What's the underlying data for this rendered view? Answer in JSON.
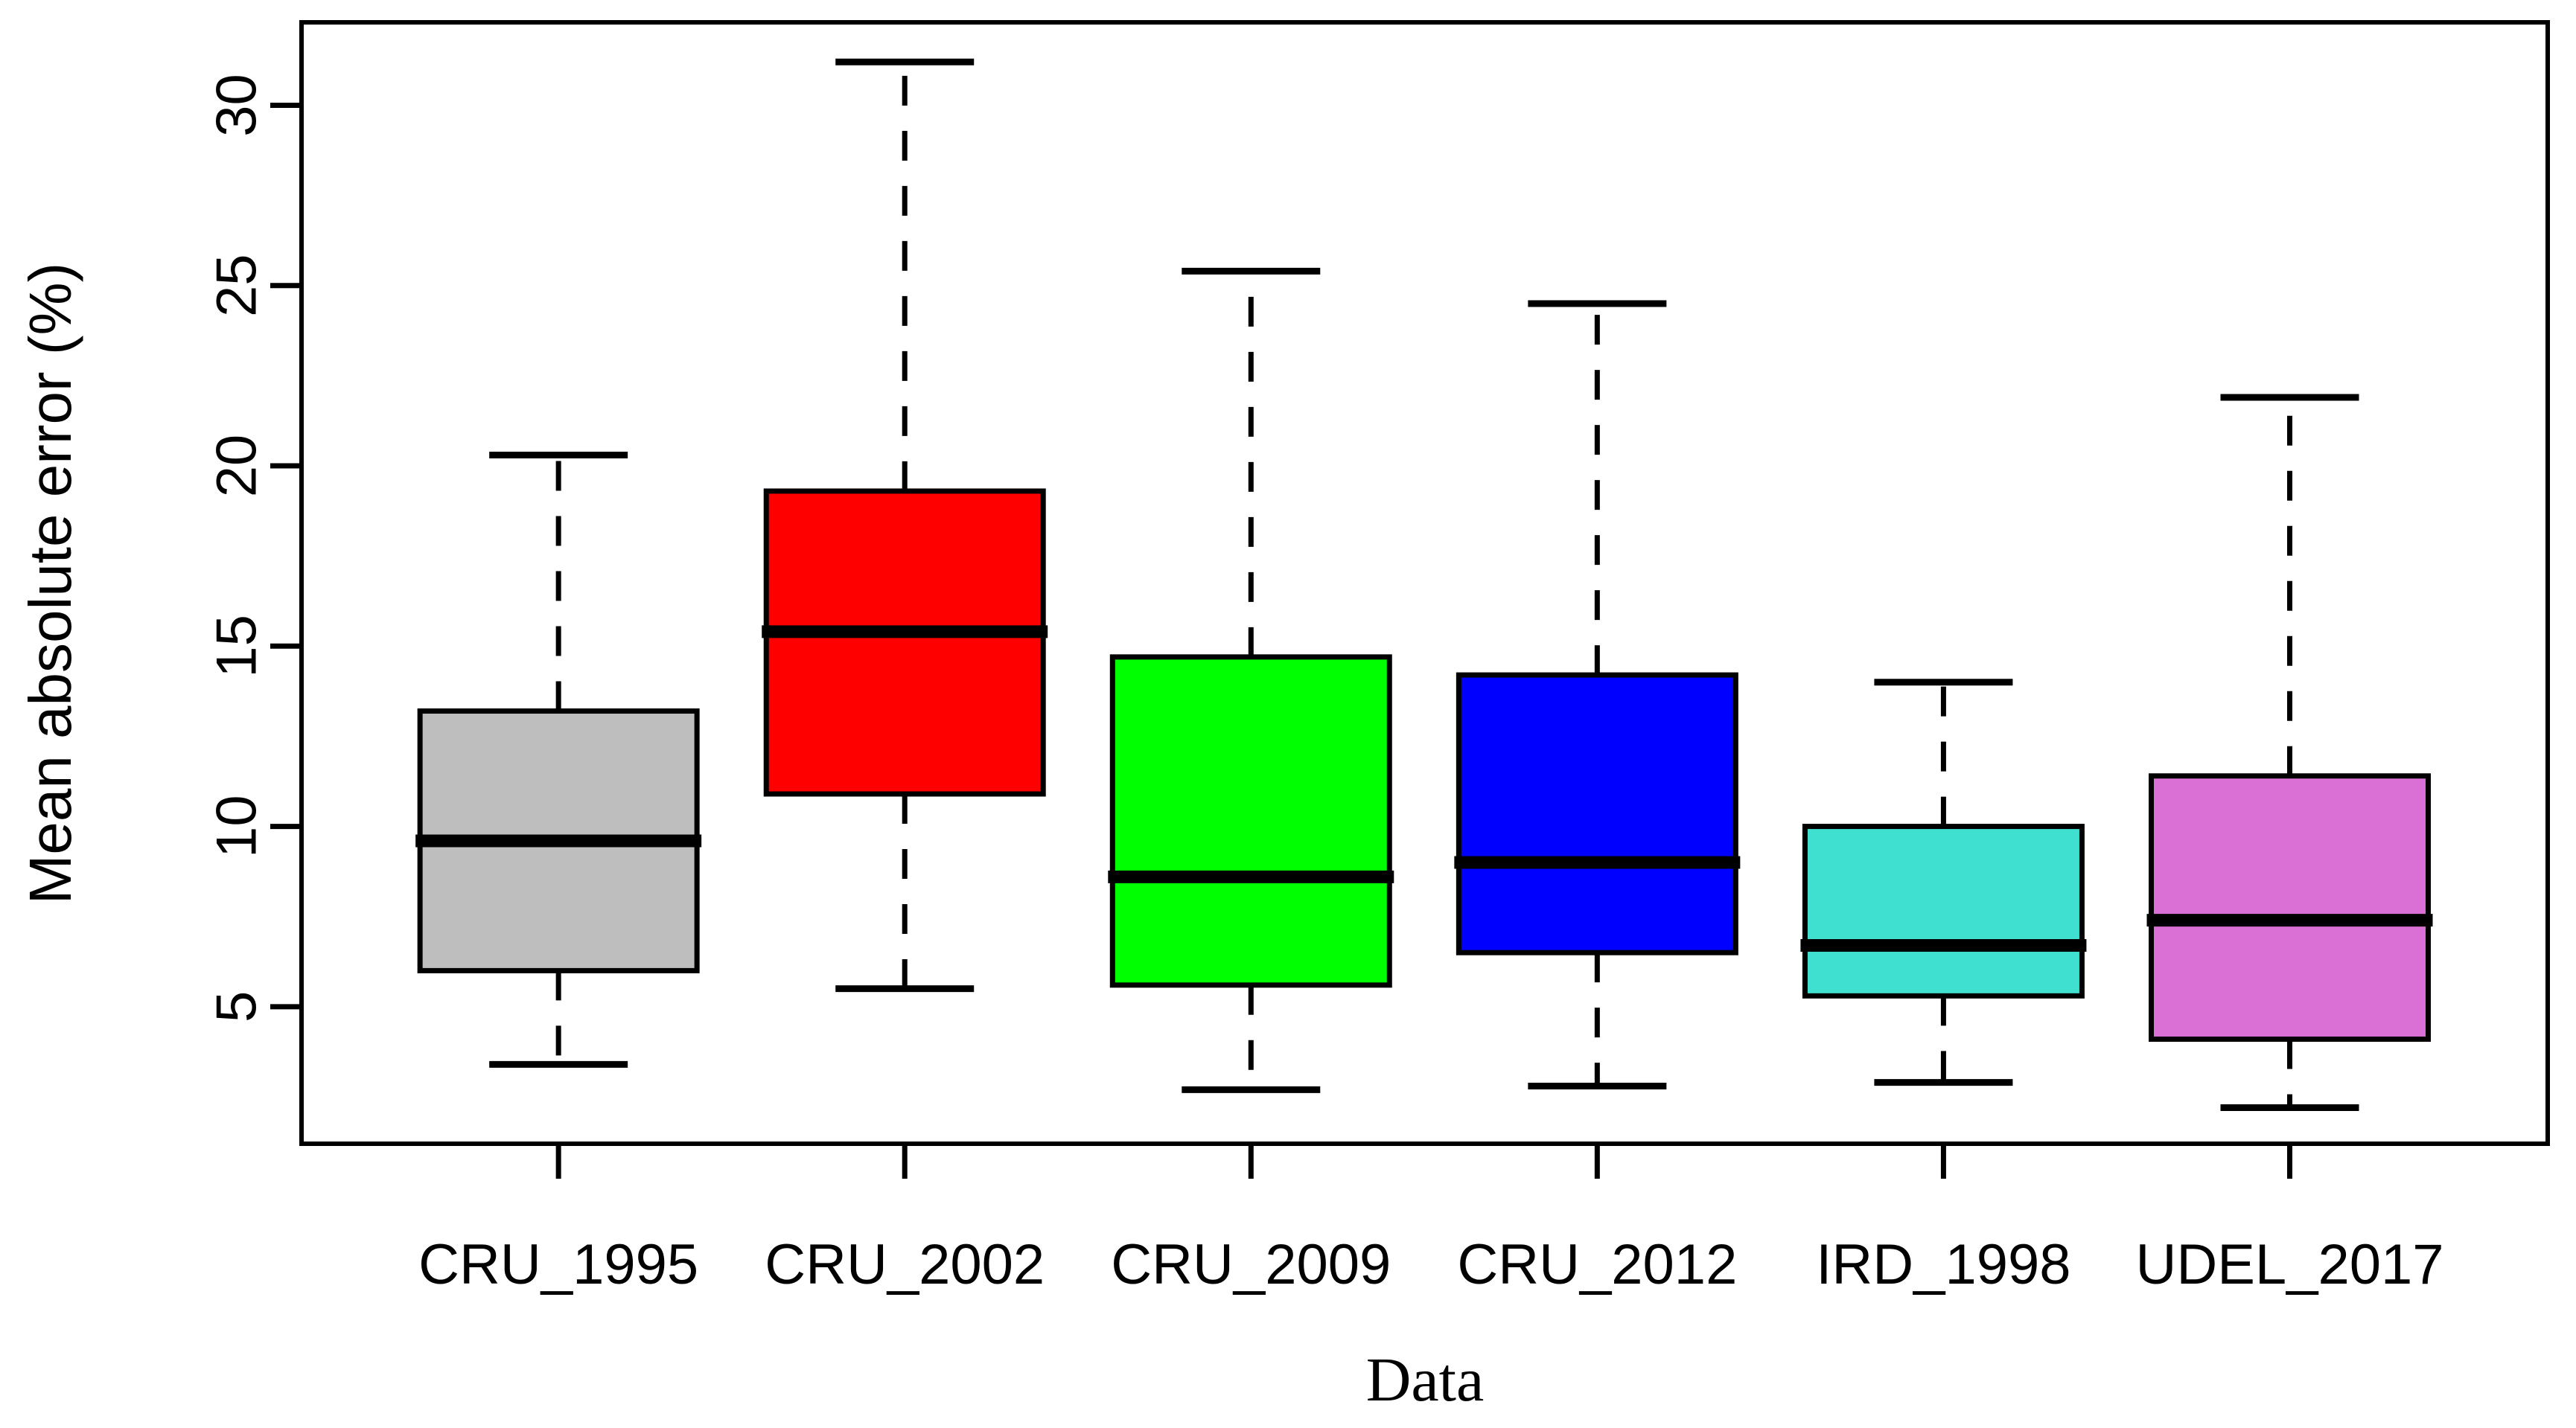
{
  "chart_data": {
    "type": "boxplot",
    "title": "",
    "xlabel": "Data",
    "ylabel": "Mean absolute error (%)",
    "categories": [
      "CRU_1995",
      "CRU_2002",
      "CRU_2009",
      "CRU_2012",
      "IRD_1998",
      "UDEL_2017"
    ],
    "series": [
      {
        "name": "CRU_1995",
        "color": "#BEBEBE",
        "whisker_low": 3.4,
        "q1": 6.0,
        "median": 9.6,
        "q3": 13.2,
        "whisker_high": 20.3
      },
      {
        "name": "CRU_2002",
        "color": "#FF0000",
        "whisker_low": 5.5,
        "q1": 10.9,
        "median": 15.4,
        "q3": 19.3,
        "whisker_high": 31.2
      },
      {
        "name": "CRU_2009",
        "color": "#00FF00",
        "whisker_low": 2.7,
        "q1": 5.6,
        "median": 8.6,
        "q3": 14.7,
        "whisker_high": 25.4
      },
      {
        "name": "CRU_2012",
        "color": "#0000FF",
        "whisker_low": 2.8,
        "q1": 6.5,
        "median": 9.0,
        "q3": 14.2,
        "whisker_high": 24.5
      },
      {
        "name": "IRD_1998",
        "color": "#40E0D0",
        "whisker_low": 2.9,
        "q1": 5.3,
        "median": 6.7,
        "q3": 10.0,
        "whisker_high": 14.0
      },
      {
        "name": "UDEL_2017",
        "color": "#DA70D6",
        "whisker_low": 2.2,
        "q1": 4.1,
        "median": 7.4,
        "q3": 11.4,
        "whisker_high": 21.9
      }
    ],
    "yticks": [
      5,
      10,
      15,
      20,
      25,
      30
    ],
    "ylim": [
      1.2,
      32.3
    ],
    "grid": false,
    "legend": "none",
    "axis_color": "#000000",
    "background_color": "#FFFFFF"
  }
}
